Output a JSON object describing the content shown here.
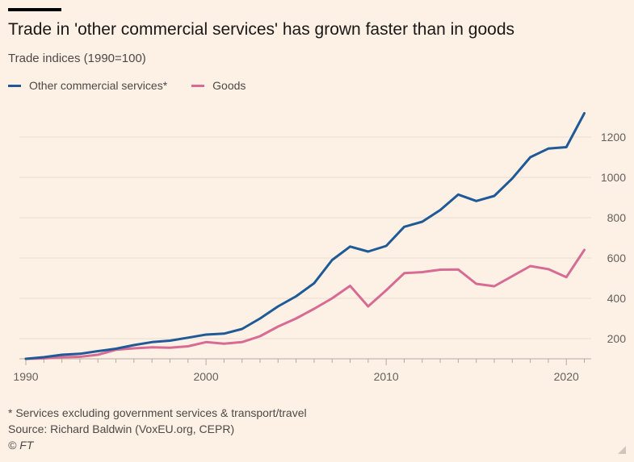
{
  "colors": {
    "services": "#1f5a96",
    "goods": "#d86b94",
    "grid": "#e9ddd1",
    "axis": "#66605c",
    "background": "#fdf1e6"
  },
  "chart_data": {
    "type": "line",
    "title": "Trade in 'other commercial services' has grown faster than in goods",
    "subtitle": "Trade indices (1990=100)",
    "x": [
      1990,
      1991,
      1992,
      1993,
      1994,
      1995,
      1996,
      1997,
      1998,
      1999,
      2000,
      2001,
      2002,
      2003,
      2004,
      2005,
      2006,
      2007,
      2008,
      2009,
      2010,
      2011,
      2012,
      2013,
      2014,
      2015,
      2016,
      2017,
      2018,
      2019,
      2020,
      2021
    ],
    "series": [
      {
        "name": "Other commercial services*",
        "color": "#1f5a96",
        "values": [
          100,
          108,
          120,
          125,
          138,
          150,
          168,
          183,
          190,
          205,
          220,
          225,
          248,
          300,
          360,
          410,
          475,
          590,
          657,
          632,
          660,
          755,
          780,
          838,
          915,
          883,
          908,
          995,
          1100,
          1143,
          1150,
          1318
        ]
      },
      {
        "name": "Goods",
        "color": "#d86b94",
        "values": [
          100,
          102,
          108,
          110,
          120,
          145,
          152,
          157,
          155,
          162,
          183,
          175,
          183,
          212,
          260,
          300,
          348,
          400,
          462,
          360,
          440,
          525,
          530,
          542,
          543,
          472,
          460,
          510,
          560,
          545,
          505,
          640
        ]
      }
    ],
    "x_ticks": [
      1990,
      2000,
      2010,
      2020
    ],
    "y_ticks": [
      200,
      400,
      600,
      800,
      1000,
      1200
    ],
    "xlim": [
      1990,
      2021.2
    ],
    "ylim": [
      100,
      1360
    ],
    "y_axis_side": "right",
    "grid": true,
    "legend": "top-left"
  },
  "footnotes": {
    "note": "* Services excluding government services & transport/travel",
    "source": "Source: Richard Baldwin (VoxEU.org, CEPR)",
    "copyright": "© FT"
  }
}
